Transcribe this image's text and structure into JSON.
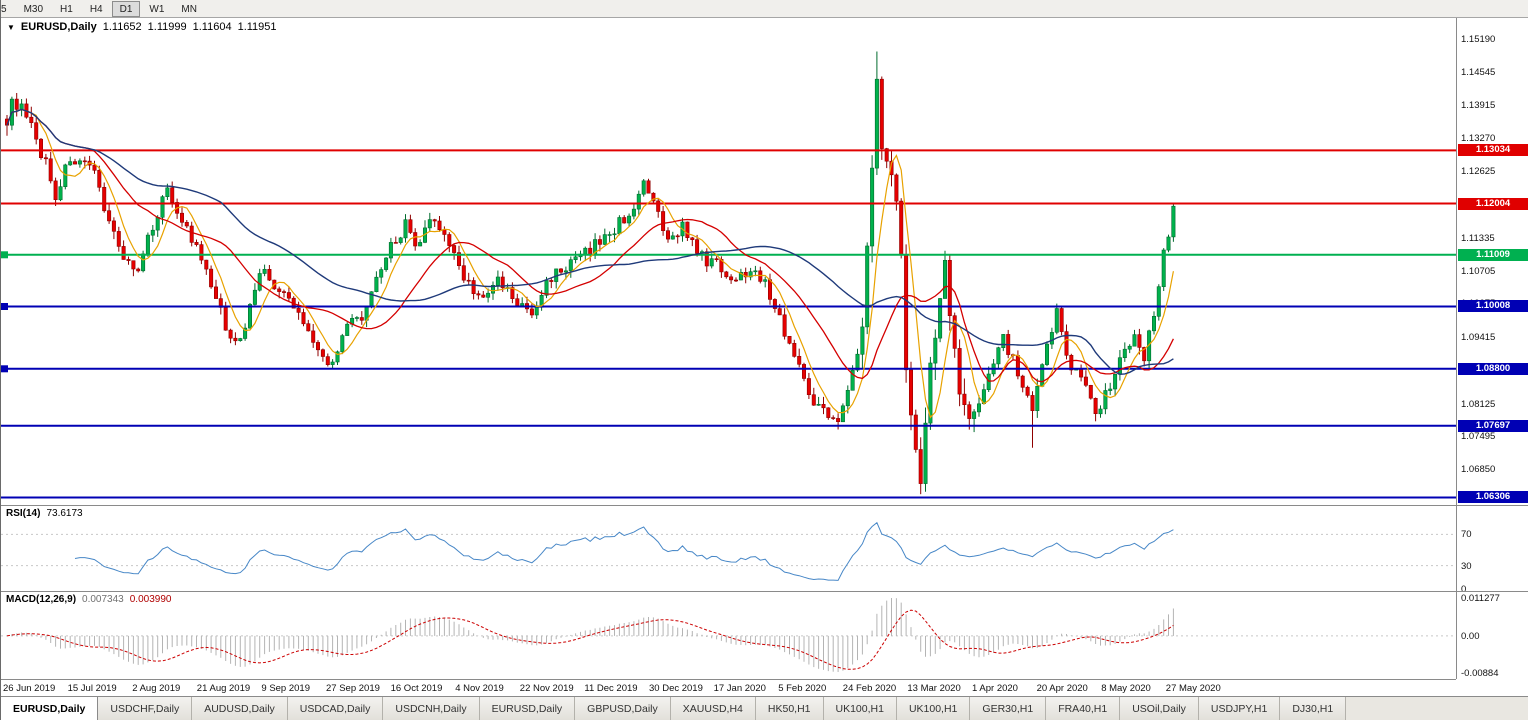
{
  "toolbar": {
    "timeframes": [
      {
        "label": "5",
        "active": false
      },
      {
        "label": "M30",
        "active": false
      },
      {
        "label": "H1",
        "active": false
      },
      {
        "label": "H4",
        "active": false
      },
      {
        "label": "D1",
        "active": true
      },
      {
        "label": "W1",
        "active": false
      },
      {
        "label": "MN",
        "active": false
      }
    ]
  },
  "chart_data": {
    "type": "candlestick",
    "title": {
      "symbol": "EURUSD,Daily",
      "open": "1.11652",
      "high": "1.11999",
      "low": "1.11604",
      "close": "1.11951"
    },
    "scale": {
      "min": 1.0616,
      "max": 1.156
    },
    "price_axis": [
      "1.15190",
      "1.14545",
      "1.13915",
      "1.13270",
      "1.12625",
      "1.11995",
      "1.11335",
      "1.10705",
      "1.10075",
      "1.09415",
      "1.08785",
      "1.08125",
      "1.07495",
      "1.06850"
    ],
    "hlines": [
      {
        "value": 1.13034,
        "label": "1.13034",
        "color": "#e00000",
        "width": 2,
        "left_mark": false
      },
      {
        "value": 1.12004,
        "label": "1.12004",
        "color": "#e00000",
        "width": 2,
        "left_mark": false
      },
      {
        "value": 1.11009,
        "label": "1.11009",
        "color": "#00b050",
        "width": 2,
        "left_mark": true
      },
      {
        "value": 1.10008,
        "label": "1.10008",
        "color": "#0000b4",
        "width": 2,
        "left_mark": true
      },
      {
        "value": 1.088,
        "label": "1.08800",
        "color": "#0000b4",
        "width": 2,
        "left_mark": true
      },
      {
        "value": 1.07697,
        "label": "1.07697",
        "color": "#0000b4",
        "width": 2,
        "left_mark": false
      },
      {
        "value": 1.06306,
        "label": "1.06306",
        "color": "#0000b4",
        "width": 2,
        "left_mark": false
      }
    ],
    "candles": {
      "count": 241,
      "anchors": [
        [
          0,
          1.137
        ],
        [
          2,
          1.14
        ],
        [
          5,
          1.134
        ],
        [
          8,
          1.128
        ],
        [
          10,
          1.1215
        ],
        [
          13,
          1.129
        ],
        [
          16,
          1.127
        ],
        [
          18,
          1.1255
        ],
        [
          23,
          1.1115
        ],
        [
          27,
          1.1062
        ],
        [
          30,
          1.116
        ],
        [
          33,
          1.123
        ],
        [
          36,
          1.117
        ],
        [
          40,
          1.109
        ],
        [
          45,
          1.0962
        ],
        [
          48,
          1.093
        ],
        [
          52,
          1.1075
        ],
        [
          55,
          1.104
        ],
        [
          59,
          1.1
        ],
        [
          63,
          1.094
        ],
        [
          66,
          1.0886
        ],
        [
          70,
          1.096
        ],
        [
          74,
          1.0992
        ],
        [
          78,
          1.11
        ],
        [
          82,
          1.116
        ],
        [
          84,
          1.111
        ],
        [
          88,
          1.1176
        ],
        [
          91,
          1.112
        ],
        [
          94,
          1.106
        ],
        [
          98,
          1.101
        ],
        [
          101,
          1.1052
        ],
        [
          105,
          1.1006
        ],
        [
          108,
          1.0984
        ],
        [
          112,
          1.1062
        ],
        [
          116,
          1.1082
        ],
        [
          120,
          1.1112
        ],
        [
          124,
          1.1142
        ],
        [
          128,
          1.1182
        ],
        [
          131,
          1.1232
        ],
        [
          133,
          1.12
        ],
        [
          136,
          1.1122
        ],
        [
          139,
          1.1162
        ],
        [
          142,
          1.11
        ],
        [
          146,
          1.1082
        ],
        [
          150,
          1.1052
        ],
        [
          154,
          1.1082
        ],
        [
          158,
          1.1002
        ],
        [
          163,
          1.0882
        ],
        [
          167,
          1.0802
        ],
        [
          171,
          1.0788
        ],
        [
          173,
          1.0832
        ],
        [
          176,
          1.0952
        ],
        [
          177,
          1.1102
        ],
        [
          179,
          1.1442
        ],
        [
          180,
          1.1332
        ],
        [
          182,
          1.1282
        ],
        [
          184,
          1.1102
        ],
        [
          185,
          1.0902
        ],
        [
          187,
          1.0702
        ],
        [
          188,
          1.0652
        ],
        [
          189,
          1.0802
        ],
        [
          191,
          1.0952
        ],
        [
          193,
          1.1092
        ],
        [
          194,
          1.1002
        ],
        [
          196,
          1.0822
        ],
        [
          199,
          1.0772
        ],
        [
          202,
          1.0882
        ],
        [
          205,
          1.0942
        ],
        [
          208,
          1.0872
        ],
        [
          211,
          1.0792
        ],
        [
          214,
          1.0922
        ],
        [
          216,
          1.0992
        ],
        [
          219,
          1.0882
        ],
        [
          222,
          1.0852
        ],
        [
          224,
          1.0796
        ],
        [
          227,
          1.0852
        ],
        [
          229,
          1.0902
        ],
        [
          232,
          1.0952
        ],
        [
          234,
          1.0896
        ],
        [
          236,
          1.0992
        ],
        [
          238,
          1.1102
        ],
        [
          240,
          1.1195
        ]
      ],
      "wick_overrides": [
        {
          "bar": 179,
          "high": 1.1495
        },
        {
          "bar": 188,
          "low": 1.0637
        },
        {
          "bar": 211,
          "low": 1.0727
        }
      ],
      "vol_zones": [
        {
          "from": 0,
          "to": 6,
          "mult": 1.4
        },
        {
          "from": 176,
          "to": 200,
          "mult": 2.2
        }
      ]
    },
    "mas": [
      {
        "period": 6,
        "color": "#e8a200",
        "width": 1.2
      },
      {
        "period": 18,
        "color": "#d40000",
        "width": 1.3
      },
      {
        "period": 45,
        "color": "#1f3a7a",
        "width": 1.4
      }
    ],
    "colors": {
      "up_fill": "#00b14c",
      "up_stroke": "#006b2d",
      "down_fill": "#e60000",
      "down_stroke": "#8f0000"
    },
    "date_axis": [
      "26 Jun 2019",
      "15 Jul 2019",
      "2 Aug 2019",
      "21 Aug 2019",
      "9 Sep 2019",
      "27 Sep 2019",
      "16 Oct 2019",
      "4 Nov 2019",
      "22 Nov 2019",
      "11 Dec 2019",
      "30 Dec 2019",
      "17 Jan 2020",
      "5 Feb 2020",
      "24 Feb 2020",
      "13 Mar 2020",
      "1 Apr 2020",
      "20 Apr 2020",
      "8 May 2020",
      "27 May 2020"
    ]
  },
  "rsi": {
    "label": "RSI(14)",
    "value": "73.6173",
    "axis": [
      "70",
      "30",
      "0"
    ],
    "levels": [
      70,
      30
    ],
    "line_color": "#4787c7"
  },
  "macd": {
    "label": "MACD(12,26,9)",
    "main_value": "0.007343",
    "signal_value": "0.003990",
    "axis": [
      "0.011277",
      "0.00",
      "-0.00884"
    ],
    "bar_color": "#b4b4b4",
    "signal_color": "#cc0000"
  },
  "tabs": [
    {
      "label": "EURUSD,Daily",
      "active": true
    },
    {
      "label": "USDCHF,Daily",
      "active": false
    },
    {
      "label": "AUDUSD,Daily",
      "active": false
    },
    {
      "label": "USDCAD,Daily",
      "active": false
    },
    {
      "label": "USDCNH,Daily",
      "active": false
    },
    {
      "label": "EURUSD,Daily",
      "active": false
    },
    {
      "label": "GBPUSD,Daily",
      "active": false
    },
    {
      "label": "XAUUSD,H4",
      "active": false
    },
    {
      "label": "HK50,H1",
      "active": false
    },
    {
      "label": "UK100,H1",
      "active": false
    },
    {
      "label": "UK100,H1",
      "active": false
    },
    {
      "label": "GER30,H1",
      "active": false
    },
    {
      "label": "FRA40,H1",
      "active": false
    },
    {
      "label": "USOil,Daily",
      "active": false
    },
    {
      "label": "USDJPY,H1",
      "active": false
    },
    {
      "label": "DJ30,H1",
      "active": false
    }
  ]
}
